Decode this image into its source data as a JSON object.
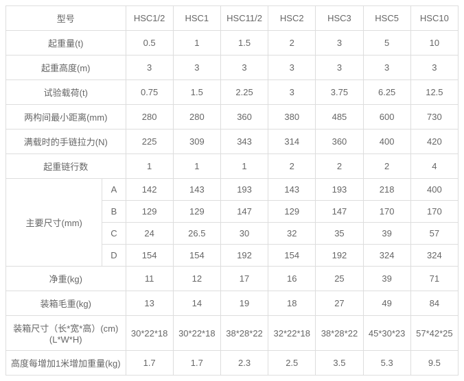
{
  "headers": {
    "model": "型号",
    "cols": [
      "HSC1/2",
      "HSC1",
      "HSC11/2",
      "HSC2",
      "HSC3",
      "HSC5",
      "HSC10"
    ]
  },
  "rows": {
    "capacity": {
      "label": "起重量(t)",
      "v": [
        "0.5",
        "1",
        "1.5",
        "2",
        "3",
        "5",
        "10"
      ]
    },
    "height": {
      "label": "起重高度(m)",
      "v": [
        "3",
        "3",
        "3",
        "3",
        "3",
        "3",
        "3"
      ]
    },
    "testload": {
      "label": "试验载荷(t)",
      "v": [
        "0.75",
        "1.5",
        "2.25",
        "3",
        "3.75",
        "6.25",
        "12.5"
      ]
    },
    "minDist": {
      "label": "两构间最小距离(mm)",
      "v": [
        "280",
        "280",
        "360",
        "380",
        "485",
        "600",
        "730"
      ]
    },
    "pull": {
      "label": "满载时的手链拉力(N)",
      "v": [
        "225",
        "309",
        "343",
        "314",
        "360",
        "400",
        "420"
      ]
    },
    "chainRows": {
      "label": "起重链行数",
      "v": [
        "1",
        "1",
        "1",
        "2",
        "2",
        "2",
        "4"
      ]
    },
    "dims": {
      "label": "主要尺寸(mm)",
      "A": {
        "k": "A",
        "v": [
          "142",
          "143",
          "193",
          "143",
          "193",
          "218",
          "400"
        ]
      },
      "B": {
        "k": "B",
        "v": [
          "129",
          "129",
          "147",
          "129",
          "147",
          "170",
          "170"
        ]
      },
      "C": {
        "k": "C",
        "v": [
          "24",
          "26.5",
          "30",
          "32",
          "35",
          "39",
          "57"
        ]
      },
      "D": {
        "k": "D",
        "v": [
          "154",
          "154",
          "192",
          "154",
          "192",
          "324",
          "324"
        ]
      }
    },
    "netWeight": {
      "label": "净重(kg)",
      "v": [
        "11",
        "12",
        "17",
        "16",
        "25",
        "39",
        "71"
      ]
    },
    "grossWeight": {
      "label": "装箱毛重(kg)",
      "v": [
        "13",
        "14",
        "19",
        "18",
        "27",
        "49",
        "84"
      ]
    },
    "boxSize": {
      "label": "装箱尺寸（长*宽*高）(cm)(L*W*H)",
      "v": [
        "30*22*18",
        "30*22*18",
        "38*28*22",
        "32*22*18",
        "38*28*22",
        "45*30*23",
        "57*42*25"
      ]
    },
    "perMeter": {
      "label": "高度每增加1米增加重量(kg)",
      "v": [
        "1.7",
        "1.7",
        "2.3",
        "2.5",
        "3.5",
        "5.3",
        "9.5"
      ]
    }
  }
}
